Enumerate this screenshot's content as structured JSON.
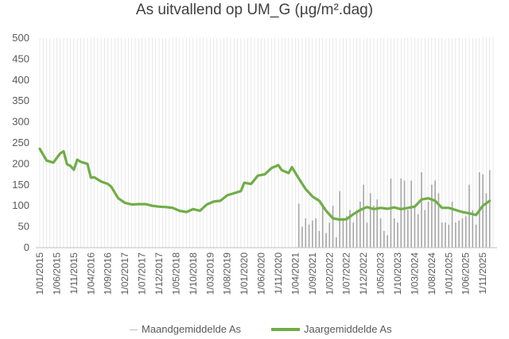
{
  "chart_data": {
    "type": "bar+line",
    "title": "As uitvallend op UM_G (µg/m².dag)",
    "ylim": [
      0,
      500
    ],
    "y_ticks": [
      0,
      50,
      100,
      150,
      200,
      250,
      300,
      350,
      400,
      450,
      500
    ],
    "x_range": [
      "2015-01",
      "2026-02"
    ],
    "x_tick_labels": [
      "1/01/2015",
      "1/06/2015",
      "1/11/2015",
      "1/04/2016",
      "1/09/2016",
      "1/02/2017",
      "1/07/2017",
      "1/12/2017",
      "1/05/2018",
      "1/10/2018",
      "1/03/2019",
      "1/08/2019",
      "1/01/2020",
      "1/06/2020",
      "1/11/2020",
      "1/04/2021",
      "1/09/2021",
      "1/02/2022",
      "1/07/2022",
      "1/12/2022",
      "1/05/2023",
      "1/10/2023",
      "1/03/2024",
      "1/08/2024",
      "1/01/2025",
      "1/06/2025",
      "1/11/2025"
    ],
    "grid": "vertical",
    "legend_position": "bottom",
    "colors": {
      "bars": "#a5a5a5",
      "line": "#70ad47",
      "grid": "#d9d9d9",
      "text": "#595959"
    },
    "series": [
      {
        "name": "Maandgemiddelde As",
        "kind": "bar",
        "x": [
          "2021-05",
          "2021-06",
          "2021-07",
          "2021-08",
          "2021-09",
          "2021-10",
          "2021-11",
          "2021-12",
          "2022-01",
          "2022-02",
          "2022-03",
          "2022-04",
          "2022-05",
          "2022-06",
          "2022-07",
          "2022-08",
          "2022-09",
          "2022-10",
          "2022-11",
          "2022-12",
          "2023-01",
          "2023-02",
          "2023-03",
          "2023-04",
          "2023-05",
          "2023-06",
          "2023-07",
          "2023-08",
          "2023-09",
          "2023-10",
          "2023-11",
          "2023-12",
          "2024-01",
          "2024-02",
          "2024-03",
          "2024-04",
          "2024-05",
          "2024-06",
          "2024-07",
          "2024-08",
          "2024-09",
          "2024-10",
          "2024-11",
          "2024-12",
          "2025-01",
          "2025-02",
          "2025-03",
          "2025-04",
          "2025-05",
          "2025-06",
          "2025-07",
          "2025-08",
          "2025-09",
          "2025-10",
          "2025-11",
          "2025-12",
          "2026-01"
        ],
        "values": [
          105,
          50,
          70,
          55,
          65,
          70,
          40,
          105,
          35,
          60,
          100,
          25,
          135,
          70,
          75,
          90,
          60,
          90,
          110,
          150,
          60,
          130,
          100,
          115,
          70,
          40,
          30,
          165,
          70,
          60,
          165,
          160,
          90,
          160,
          100,
          80,
          180,
          90,
          110,
          150,
          160,
          130,
          60,
          60,
          55,
          110,
          60,
          65,
          70,
          75,
          150,
          90,
          55,
          180,
          175,
          130,
          185
        ]
      },
      {
        "name": "Jaargemiddelde As",
        "kind": "line",
        "x": [
          "2015-01",
          "2015-03",
          "2015-05",
          "2015-07",
          "2015-08",
          "2015-09",
          "2015-10",
          "2015-11",
          "2015-12",
          "2016-01",
          "2016-03",
          "2016-04",
          "2016-05",
          "2016-07",
          "2016-09",
          "2016-10",
          "2016-12",
          "2017-02",
          "2017-04",
          "2017-06",
          "2017-08",
          "2017-10",
          "2017-12",
          "2018-02",
          "2018-04",
          "2018-06",
          "2018-08",
          "2018-10",
          "2018-12",
          "2019-02",
          "2019-04",
          "2019-06",
          "2019-08",
          "2019-10",
          "2019-12",
          "2020-01",
          "2020-03",
          "2020-05",
          "2020-07",
          "2020-09",
          "2020-11",
          "2020-12",
          "2021-02",
          "2021-03",
          "2021-05",
          "2021-07",
          "2021-09",
          "2021-11",
          "2022-01",
          "2022-03",
          "2022-05",
          "2022-07",
          "2022-09",
          "2022-11",
          "2023-01",
          "2023-03",
          "2023-05",
          "2023-07",
          "2023-09",
          "2023-11",
          "2024-01",
          "2024-03",
          "2024-05",
          "2024-07",
          "2024-09",
          "2024-11",
          "2025-01",
          "2025-03",
          "2025-05",
          "2025-07",
          "2025-09",
          "2025-11",
          "2026-01"
        ],
        "values": [
          236,
          208,
          203,
          225,
          230,
          199,
          195,
          186,
          210,
          205,
          200,
          167,
          168,
          158,
          152,
          145,
          118,
          107,
          103,
          104,
          104,
          100,
          98,
          97,
          95,
          88,
          85,
          92,
          88,
          103,
          110,
          112,
          125,
          130,
          135,
          155,
          152,
          172,
          175,
          190,
          197,
          185,
          178,
          192,
          165,
          140,
          122,
          112,
          88,
          70,
          67,
          68,
          80,
          90,
          97,
          92,
          95,
          93,
          96,
          92,
          95,
          98,
          115,
          118,
          112,
          95,
          95,
          90,
          85,
          82,
          78,
          100,
          112
        ]
      }
    ]
  }
}
